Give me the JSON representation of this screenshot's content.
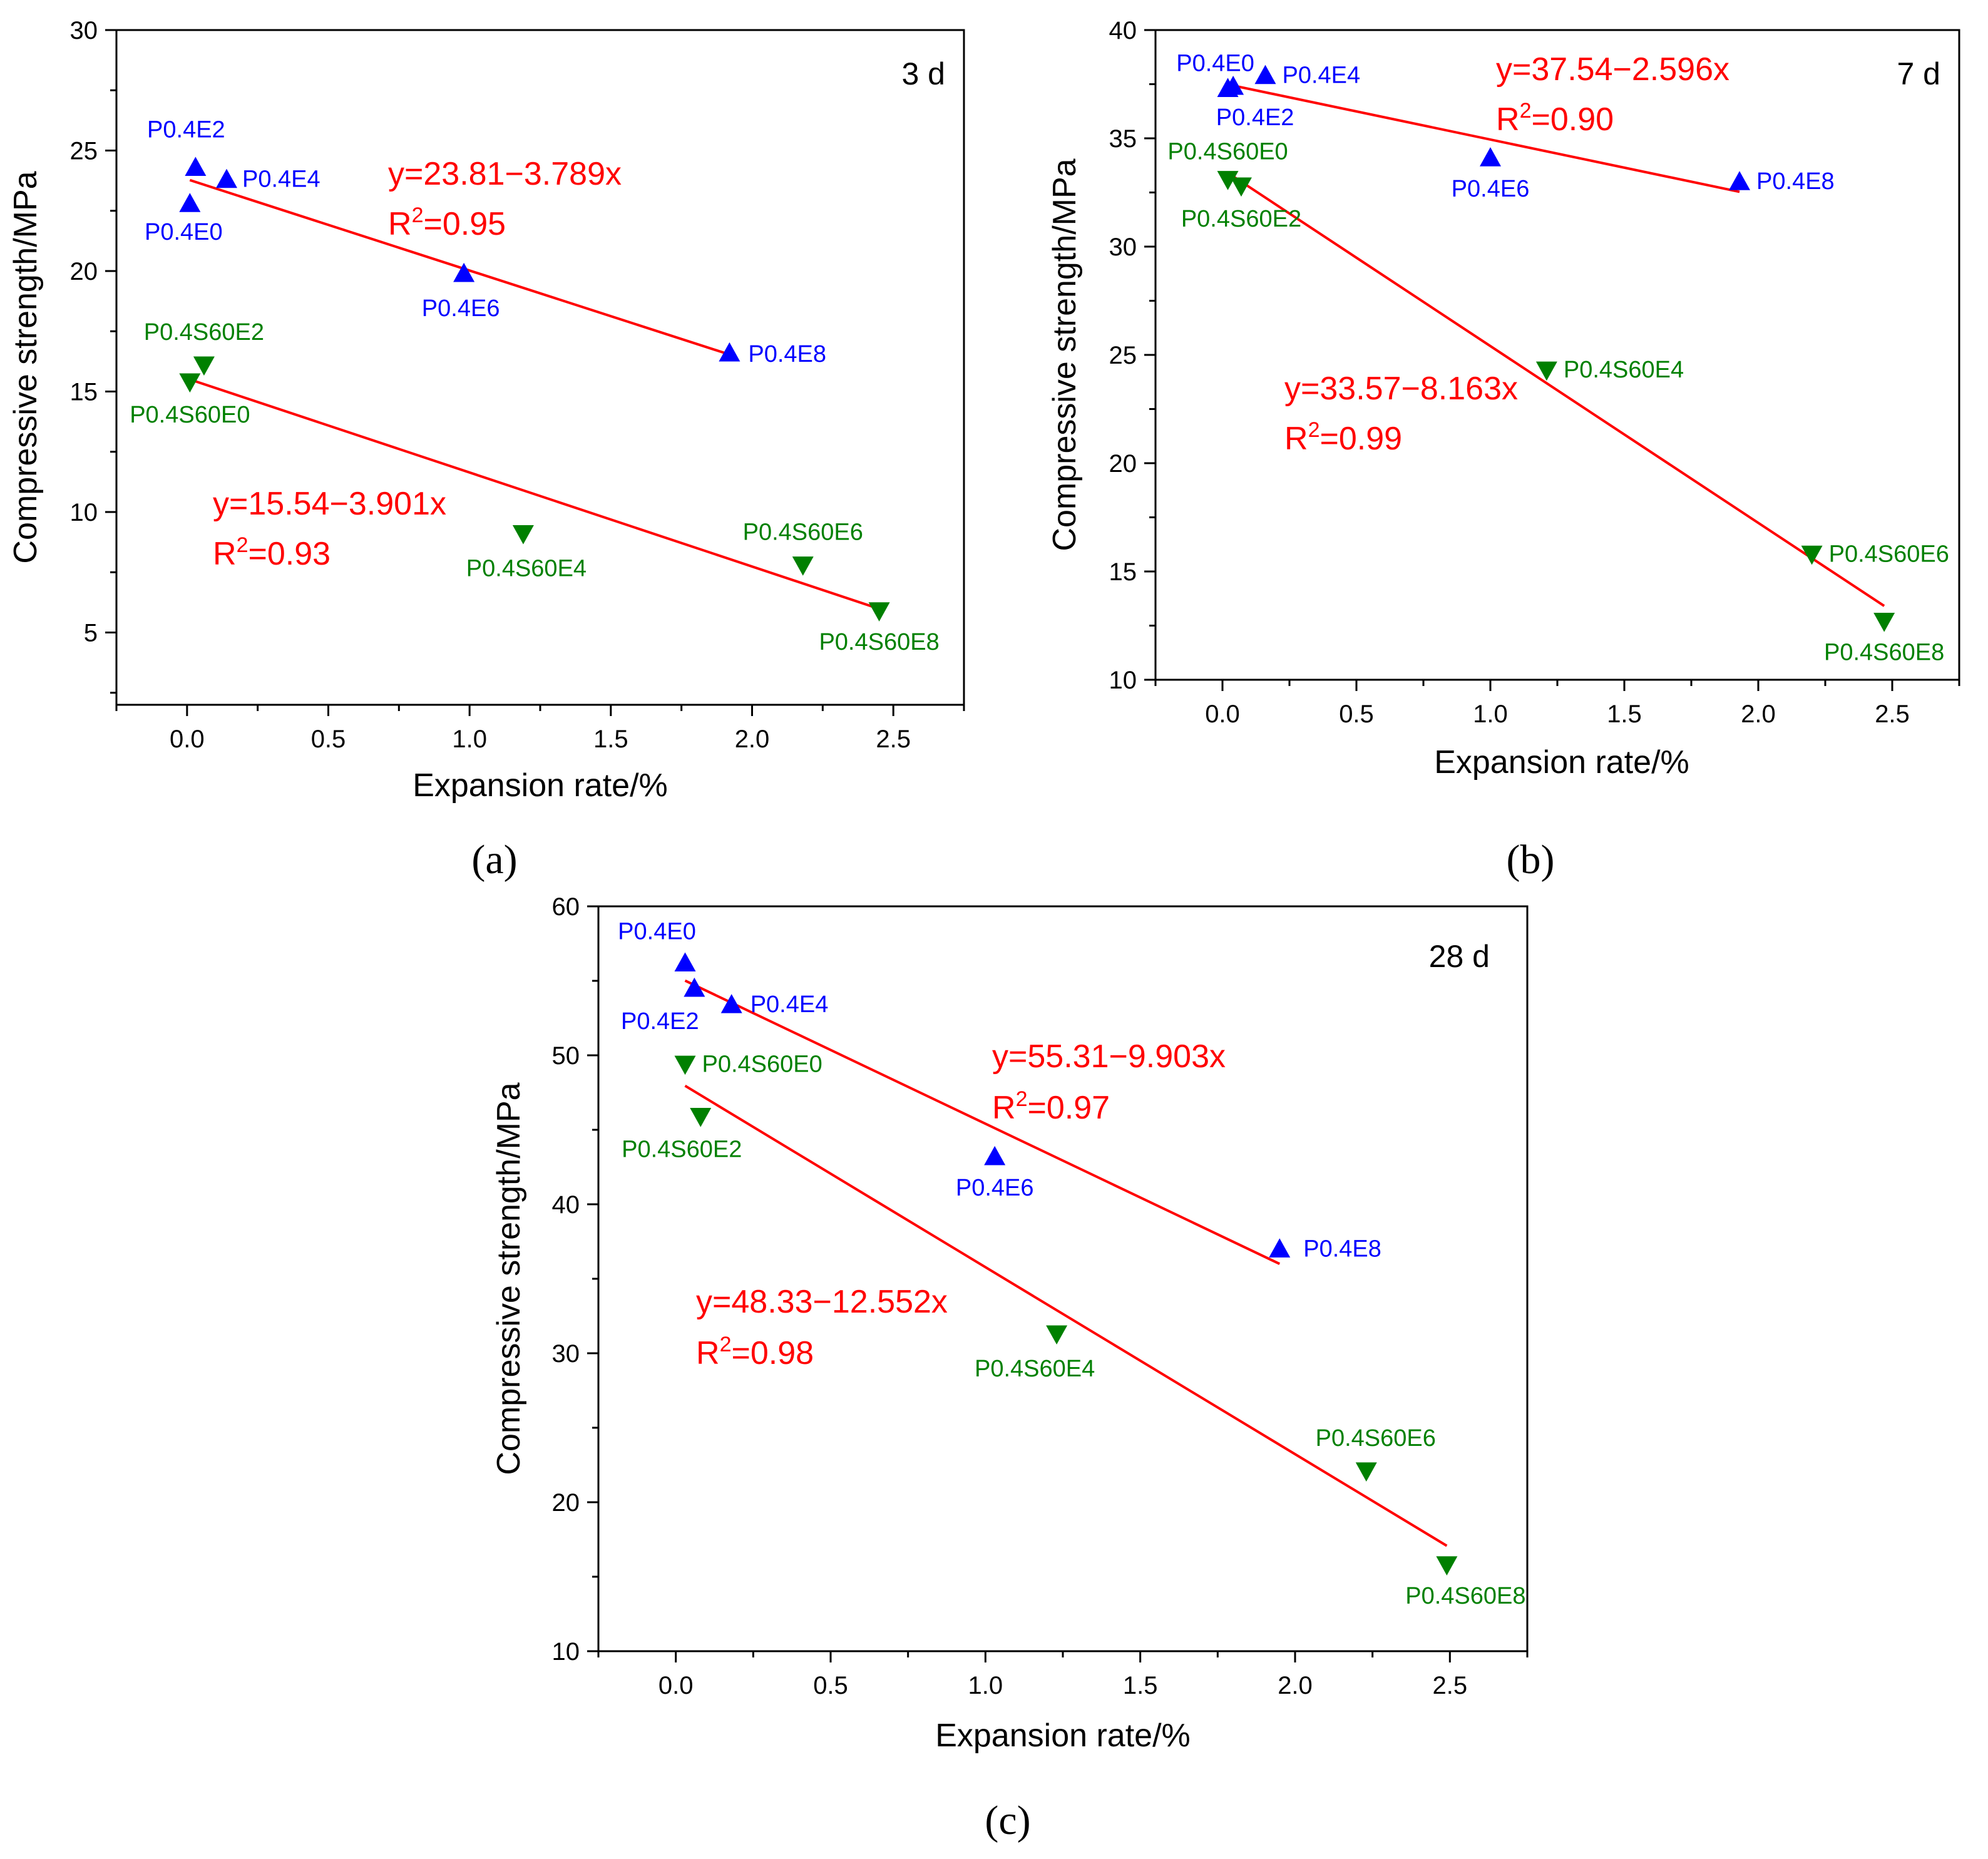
{
  "colors": {
    "blue": "#0000ff",
    "green": "#008000",
    "red": "#ff0000",
    "axis": "#000000"
  },
  "chart_data": [
    {
      "type": "scatter",
      "caption": "(a)",
      "panel_label": "3 d",
      "xlabel": "Expansion rate/%",
      "ylabel": "Compressive strength/MPa",
      "xlim": [
        -0.25,
        2.75
      ],
      "ylim": [
        2,
        30
      ],
      "xticks": [
        "0.0",
        "0.5",
        "1.0",
        "1.5",
        "2.0",
        "2.5"
      ],
      "yticks": [
        "5",
        "10",
        "15",
        "20",
        "25",
        "30"
      ],
      "points": [
        {
          "label": "P0.4E0",
          "x": 0.01,
          "y": 22.8,
          "series": "blue",
          "marker": "up"
        },
        {
          "label": "P0.4E2",
          "x": 0.03,
          "y": 24.3,
          "series": "blue",
          "marker": "up"
        },
        {
          "label": "P0.4E4",
          "x": 0.14,
          "y": 23.8,
          "series": "blue",
          "marker": "up"
        },
        {
          "label": "P0.4E6",
          "x": 0.98,
          "y": 19.9,
          "series": "blue",
          "marker": "up"
        },
        {
          "label": "P0.4E8",
          "x": 1.92,
          "y": 16.6,
          "series": "blue",
          "marker": "up"
        },
        {
          "label": "P0.4S60E0",
          "x": 0.01,
          "y": 15.4,
          "series": "green",
          "marker": "down"
        },
        {
          "label": "P0.4S60E2",
          "x": 0.06,
          "y": 16.1,
          "series": "green",
          "marker": "down"
        },
        {
          "label": "P0.4S60E4",
          "x": 1.19,
          "y": 9.1,
          "series": "green",
          "marker": "down"
        },
        {
          "label": "P0.4S60E6",
          "x": 2.18,
          "y": 7.8,
          "series": "green",
          "marker": "down"
        },
        {
          "label": "P0.4S60E8",
          "x": 2.45,
          "y": 5.9,
          "series": "green",
          "marker": "down"
        }
      ],
      "fits": [
        {
          "equation": "y=23.81−3.789x",
          "r2_prefix": "R",
          "r2_sup": "2",
          "r2_value": "=0.95",
          "x": [
            0.01,
            1.92
          ]
        },
        {
          "equation": "y=15.54−3.901x",
          "r2_prefix": "R",
          "r2_sup": "2",
          "r2_value": "=0.93",
          "x": [
            0.01,
            2.45
          ]
        }
      ]
    },
    {
      "type": "scatter",
      "caption": "(b)",
      "panel_label": "7 d",
      "xlabel": "Expansion rate/%",
      "ylabel": "Compressive strength/MPa",
      "xlim": [
        -0.25,
        2.75
      ],
      "ylim": [
        10,
        40
      ],
      "xticks": [
        "0.0",
        "0.5",
        "1.0",
        "1.5",
        "2.0",
        "2.5"
      ],
      "yticks": [
        "10",
        "15",
        "20",
        "25",
        "30",
        "35",
        "40"
      ],
      "points": [
        {
          "label": "P0.4E0",
          "x": 0.02,
          "y": 37.3,
          "series": "blue",
          "marker": "up"
        },
        {
          "label": "P0.4E2",
          "x": 0.04,
          "y": 37.4,
          "series": "blue",
          "marker": "up"
        },
        {
          "label": "P0.4E4",
          "x": 0.16,
          "y": 37.9,
          "series": "blue",
          "marker": "up"
        },
        {
          "label": "P0.4E6",
          "x": 1.0,
          "y": 34.1,
          "series": "blue",
          "marker": "up"
        },
        {
          "label": "P0.4E8",
          "x": 1.93,
          "y": 33.0,
          "series": "blue",
          "marker": "up"
        },
        {
          "label": "P0.4S60E0",
          "x": 0.02,
          "y": 33.1,
          "series": "green",
          "marker": "down"
        },
        {
          "label": "P0.4S60E2",
          "x": 0.07,
          "y": 32.8,
          "series": "green",
          "marker": "down"
        },
        {
          "label": "P0.4S60E4",
          "x": 1.21,
          "y": 24.3,
          "series": "green",
          "marker": "down"
        },
        {
          "label": "P0.4S60E6",
          "x": 2.2,
          "y": 15.8,
          "series": "green",
          "marker": "down"
        },
        {
          "label": "P0.4S60E8",
          "x": 2.47,
          "y": 12.7,
          "series": "green",
          "marker": "down"
        }
      ],
      "fits": [
        {
          "equation": "y=37.54−2.596x",
          "r2_prefix": "R",
          "r2_sup": "2",
          "r2_value": "=0.90",
          "x": [
            0.02,
            1.93
          ]
        },
        {
          "equation": "y=33.57−8.163x",
          "r2_prefix": "R",
          "r2_sup": "2",
          "r2_value": "=0.99",
          "x": [
            0.02,
            2.47
          ]
        }
      ]
    },
    {
      "type": "scatter",
      "caption": "(c)",
      "panel_label": "28 d",
      "xlabel": "Expansion rate/%",
      "ylabel": "Compressive strength/MPa",
      "xlim": [
        -0.25,
        2.75
      ],
      "ylim": [
        10,
        60
      ],
      "xticks": [
        "0.0",
        "0.5",
        "1.0",
        "1.5",
        "2.0",
        "2.5"
      ],
      "yticks": [
        "10",
        "20",
        "30",
        "40",
        "50",
        "60"
      ],
      "points": [
        {
          "label": "P0.4E0",
          "x": 0.03,
          "y": 56.2,
          "series": "blue",
          "marker": "up"
        },
        {
          "label": "P0.4E2",
          "x": 0.06,
          "y": 54.5,
          "series": "blue",
          "marker": "up"
        },
        {
          "label": "P0.4E4",
          "x": 0.18,
          "y": 53.4,
          "series": "blue",
          "marker": "up"
        },
        {
          "label": "P0.4E6",
          "x": 1.03,
          "y": 43.2,
          "series": "blue",
          "marker": "up"
        },
        {
          "label": "P0.4E8",
          "x": 1.95,
          "y": 37.0,
          "series": "blue",
          "marker": "up"
        },
        {
          "label": "P0.4S60E0",
          "x": 0.03,
          "y": 49.4,
          "series": "green",
          "marker": "down"
        },
        {
          "label": "P0.4S60E2",
          "x": 0.08,
          "y": 45.9,
          "series": "green",
          "marker": "down"
        },
        {
          "label": "P0.4S60E4",
          "x": 1.23,
          "y": 31.3,
          "series": "green",
          "marker": "down"
        },
        {
          "label": "P0.4S60E6",
          "x": 2.23,
          "y": 22.1,
          "series": "green",
          "marker": "down"
        },
        {
          "label": "P0.4S60E8",
          "x": 2.49,
          "y": 15.8,
          "series": "green",
          "marker": "down"
        }
      ],
      "fits": [
        {
          "equation": "y=55.31−9.903x",
          "r2_prefix": "R",
          "r2_sup": "2",
          "r2_value": "=0.97",
          "x": [
            0.03,
            1.95
          ]
        },
        {
          "equation": "y=48.33−12.552x",
          "r2_prefix": "R",
          "r2_sup": "2",
          "r2_value": "=0.98",
          "x": [
            0.03,
            2.49
          ]
        }
      ]
    }
  ]
}
